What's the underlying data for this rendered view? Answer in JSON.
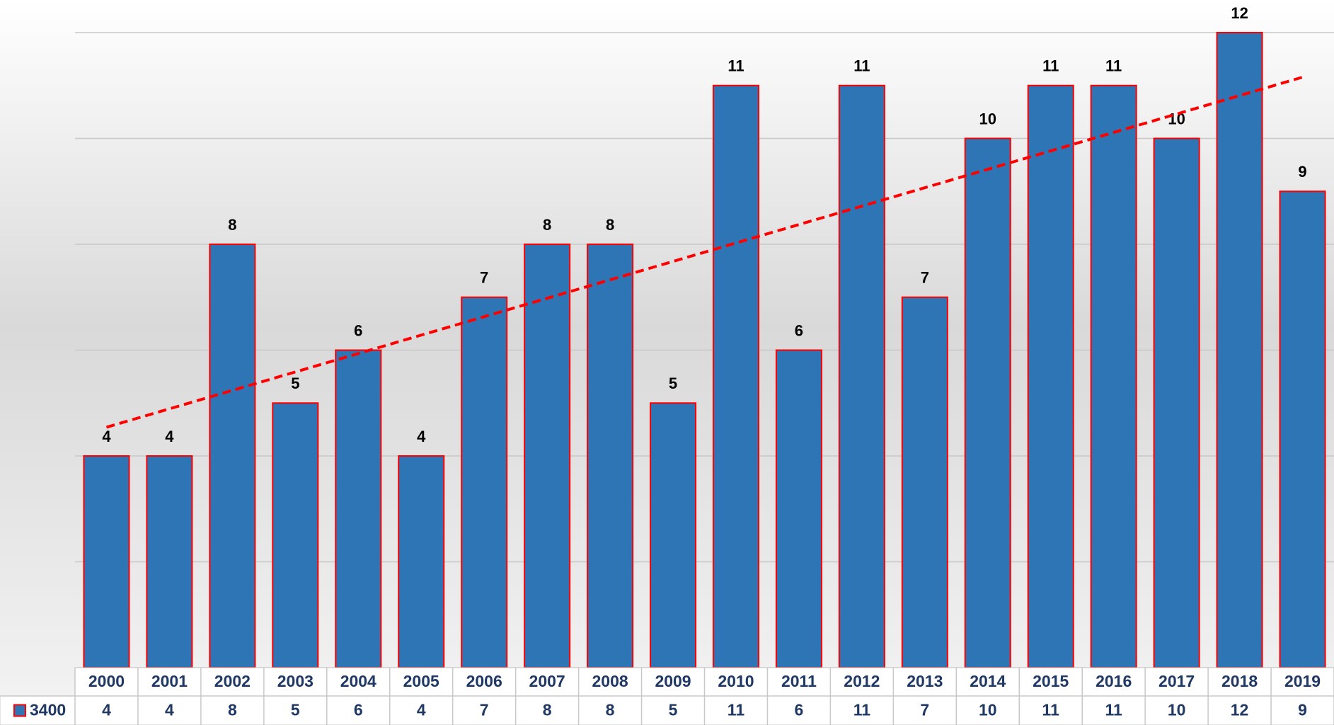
{
  "chart_data": {
    "type": "bar",
    "categories": [
      "2000",
      "2001",
      "2002",
      "2003",
      "2004",
      "2005",
      "2006",
      "2007",
      "2008",
      "2009",
      "2010",
      "2011",
      "2012",
      "2013",
      "2014",
      "2015",
      "2016",
      "2017",
      "2018",
      "2019"
    ],
    "series": [
      {
        "name": "3400",
        "color": "#2e75b6",
        "edge_color": "#ff0000",
        "values": [
          4,
          4,
          8,
          5,
          6,
          4,
          7,
          8,
          8,
          5,
          11,
          6,
          11,
          7,
          10,
          11,
          11,
          10,
          12,
          9
        ]
      }
    ],
    "ylim": [
      0,
      12
    ],
    "yticks": [
      0,
      2,
      4,
      6,
      8,
      10,
      12
    ],
    "grid": true,
    "trendline": {
      "type": "linear",
      "color": "#ff0000",
      "dashed": true
    },
    "data_table": true
  }
}
